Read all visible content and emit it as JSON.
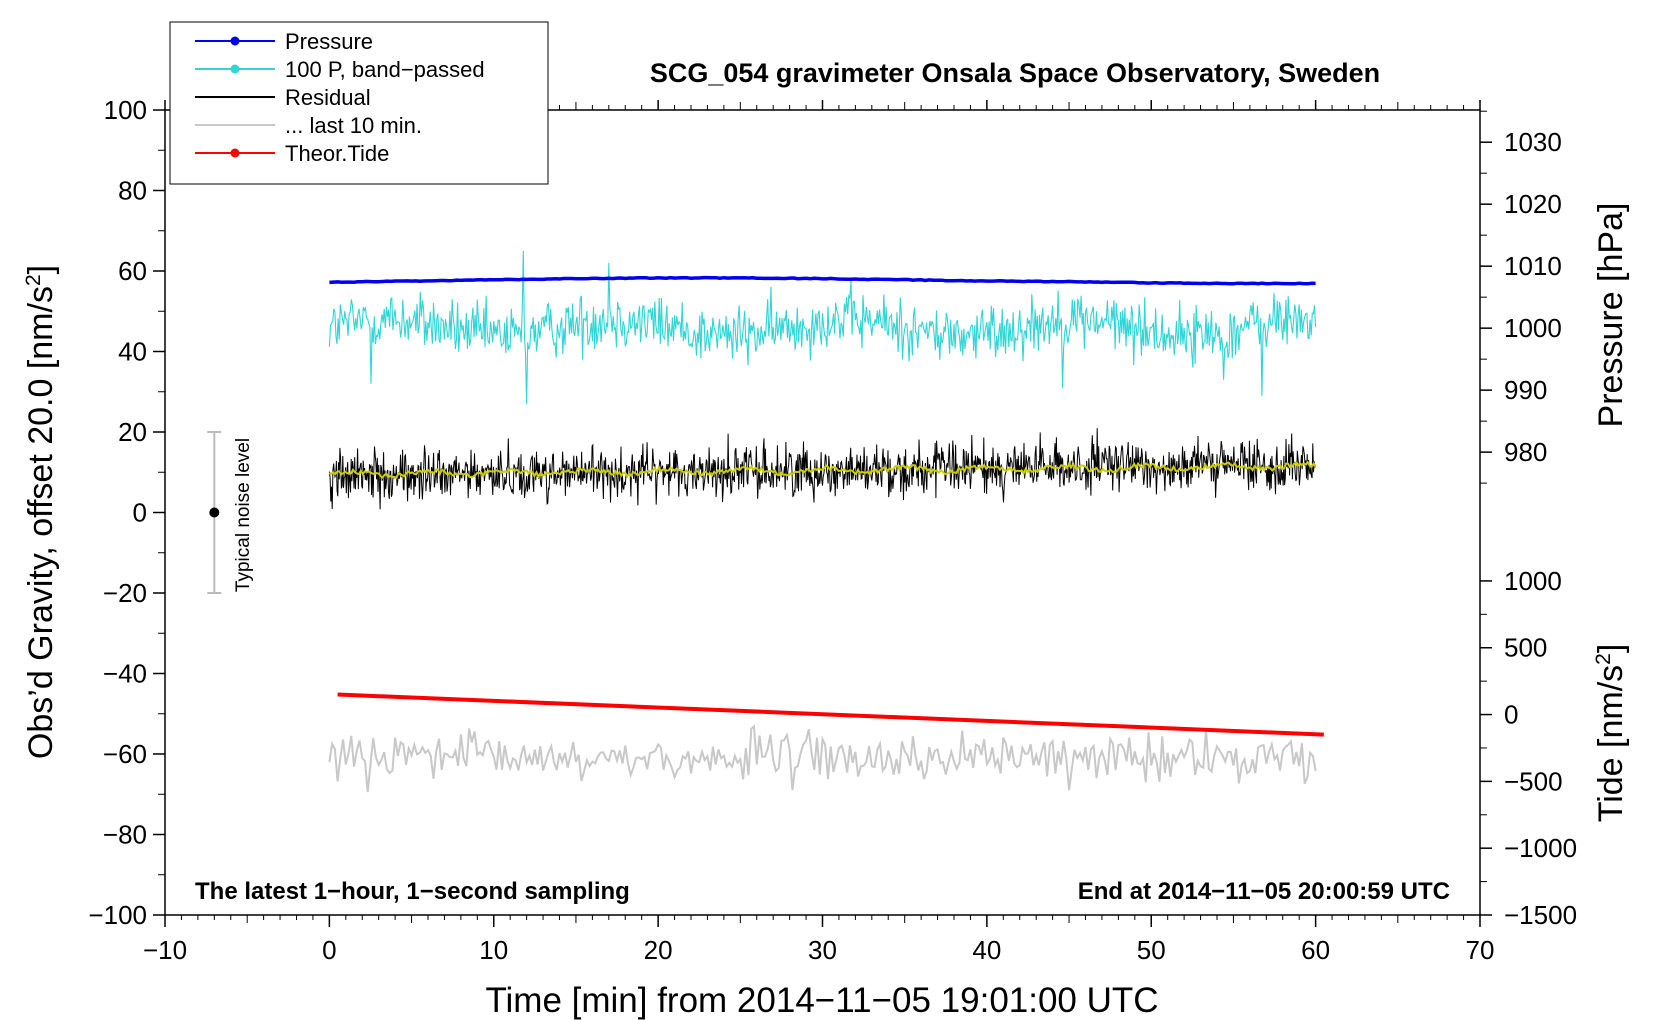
{
  "chart_data": {
    "type": "line",
    "title": "SCG_054 gravimeter Onsala Space Observatory, Sweden",
    "xlabel": "Time [min] from 2014−11−05 19:01:00 UTC",
    "ylabel_left": "Obs’d Gravity, offset 20.0 [nm/s",
    "ylabel_left_sup": "2",
    "ylabel_left_end": "]",
    "ylabel_pressure": "Pressure [hPa]",
    "ylabel_tide": "Tide [nm/s",
    "ylabel_tide_sup": "2",
    "ylabel_tide_end": "]",
    "xlim": [
      -10,
      70
    ],
    "ylim": [
      -100,
      100
    ],
    "x_ticks": [
      -10,
      0,
      10,
      20,
      30,
      40,
      50,
      60,
      70
    ],
    "x_tick_labels": [
      "−10",
      "0",
      "10",
      "20",
      "30",
      "40",
      "50",
      "60",
      "70"
    ],
    "y_ticks": [
      -100,
      -80,
      -60,
      -40,
      -20,
      0,
      20,
      40,
      60,
      80,
      100
    ],
    "y_tick_labels": [
      "−100",
      "−80",
      "−60",
      "−40",
      "−20",
      "0",
      "20",
      "40",
      "60",
      "80",
      "100"
    ],
    "pressure_axis": {
      "map": {
        "p1": 1030,
        "g1": 92,
        "p2": 980,
        "g2": 15
      },
      "ticks": [
        980,
        990,
        1000,
        1010,
        1020,
        1030
      ],
      "tick_labels": [
        "980",
        "990",
        "1000",
        "1010",
        "1020",
        "1030"
      ]
    },
    "tide_axis": {
      "map": {
        "t1": 1000,
        "g1": -17,
        "t2": -1500,
        "g2": -100
      },
      "ticks": [
        -1500,
        -1000,
        -500,
        0,
        500,
        1000
      ],
      "tick_labels": [
        "−1500",
        "−1000",
        "−500",
        "0",
        "500",
        "1000"
      ]
    },
    "annotations": {
      "left": "The latest 1−hour, 1−second sampling",
      "right": "End at 2014−11−05 20:00:59 UTC",
      "noise_label": "Typical noise level"
    },
    "noise_bar": {
      "x": -7,
      "center": 0,
      "low": -20,
      "high": 20
    },
    "series": [
      {
        "name": "Pressure",
        "color": "#0000ee",
        "x_range": [
          0,
          60
        ],
        "pressure_hPa": [
          1007.4,
          1007.6,
          1007.8,
          1008.0,
          1008.1,
          1008.1,
          1008.0,
          1007.8,
          1007.6,
          1007.5,
          1007.3,
          1007.2,
          1007.2
        ]
      },
      {
        "name": "100 P, band−passed",
        "color": "#30d5d5",
        "x_range": [
          0,
          60
        ],
        "baseline": 46,
        "amplitude": 6,
        "extremes": [
          {
            "x": 2.5,
            "y": 32
          },
          {
            "x": 11.8,
            "y": 65
          },
          {
            "x": 12.0,
            "y": 27
          },
          {
            "x": 17.0,
            "y": 62
          },
          {
            "x": 44.6,
            "y": 31
          },
          {
            "x": 54.4,
            "y": 33
          },
          {
            "x": 56.7,
            "y": 29
          }
        ]
      },
      {
        "name": "Residual",
        "color": "#000000",
        "x_range": [
          0,
          60
        ],
        "start": 9,
        "end": 12,
        "amplitude": 4
      },
      {
        "name": "... last 10 min.",
        "color": "#c8c8c8",
        "x_range": [
          0,
          60
        ],
        "baseline": -61,
        "amplitude": 4
      },
      {
        "name": "Theor.Tide",
        "color": "#ff0000",
        "x_range": [
          0.5,
          60.5
        ],
        "tide_start": 150,
        "tide_end": -150
      },
      {
        "name": "Residual smoothed",
        "color": "#cccc00",
        "x_range": [
          0,
          60
        ],
        "start": 9.5,
        "end": 11.5
      }
    ],
    "legend": {
      "placement": "top-left",
      "entries": [
        {
          "label": "Pressure",
          "color": "#0000ee",
          "marker": true
        },
        {
          "label": "100 P, band−passed",
          "color": "#30d5d5",
          "marker": true
        },
        {
          "label": "Residual",
          "color": "#000000",
          "marker": false
        },
        {
          "label": "... last 10 min.",
          "color": "#c8c8c8",
          "marker": false
        },
        {
          "label": "Theor.Tide",
          "color": "#ff0000",
          "marker": true
        }
      ]
    }
  }
}
